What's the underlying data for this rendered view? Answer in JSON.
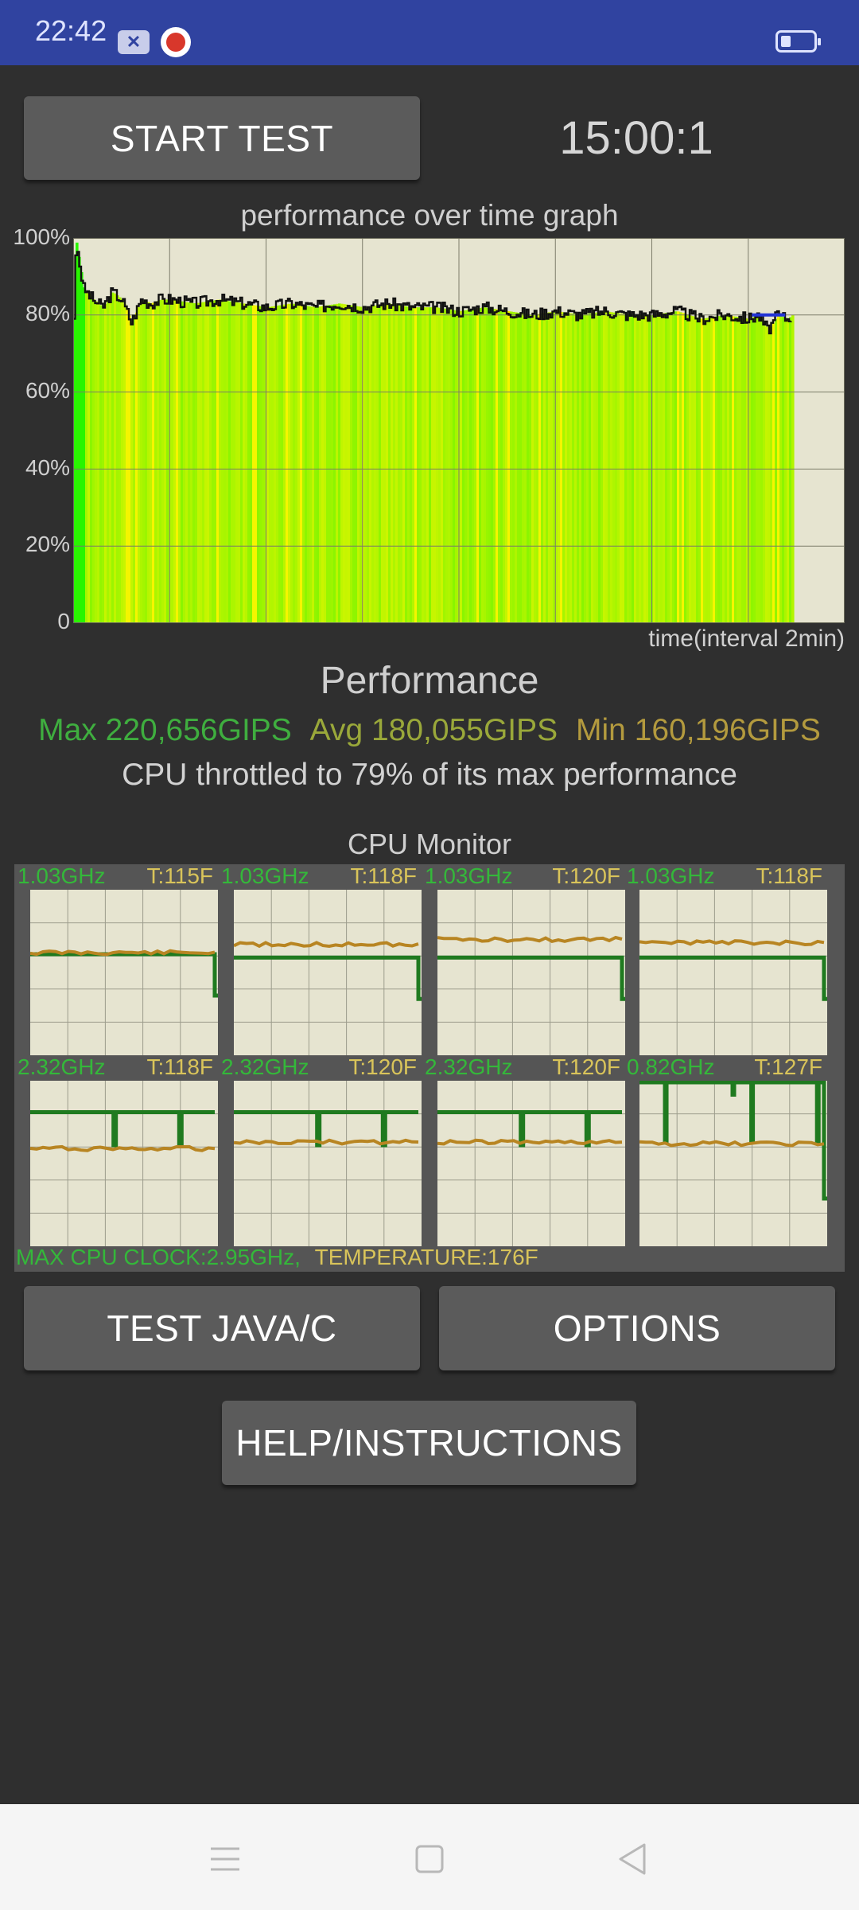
{
  "status_bar": {
    "time": "22:42",
    "icons": [
      "x-notification-icon",
      "app-notification-icon",
      "battery-icon"
    ]
  },
  "controls": {
    "start_test_label": "START TEST",
    "timer": "15:00:1"
  },
  "chart_data": {
    "type": "area",
    "title": "performance over time graph",
    "xlabel": "time(interval 2min)",
    "ylabel": "",
    "ylim": [
      0,
      100
    ],
    "y_tick_labels": [
      "100%",
      "80%",
      "60%",
      "40%",
      "20%",
      "0"
    ],
    "x_interval_minutes": 2,
    "x_range_minutes": [
      0,
      16
    ],
    "grid": true,
    "series": [
      {
        "x": [
          0,
          0.05,
          0.2,
          0.4,
          0.6,
          0.8,
          1.0,
          1.2,
          1.4,
          1.6,
          1.8,
          2,
          2.5,
          3,
          3.5,
          4,
          4.5,
          5,
          5.5,
          6,
          6.5,
          7,
          7.5,
          8,
          8.5,
          9,
          9.5,
          10,
          10.5,
          11,
          11.5,
          12,
          12.5,
          13,
          13.5,
          14,
          14.2,
          14.4,
          14.6,
          14.8,
          14.9
        ],
        "values": [
          79,
          99,
          87,
          84,
          82,
          86,
          84,
          78,
          84,
          83,
          84,
          84,
          83,
          84,
          83,
          82,
          83,
          82,
          83,
          82,
          83,
          82,
          82,
          81,
          82,
          81,
          80,
          81,
          80,
          81,
          80,
          80,
          81,
          79,
          80,
          79,
          80,
          76,
          80,
          79,
          80
        ]
      }
    ]
  },
  "performance": {
    "title": "Performance",
    "max": "Max 220,656GIPS",
    "avg": "Avg 180,055GIPS",
    "min": "Min 160,196GIPS",
    "throttle_text": "CPU throttled to 79% of its max performance",
    "colors": {
      "max": "#3fae3f",
      "avg": "#9aa83a",
      "min": "#b39a3e"
    }
  },
  "cpu_monitor": {
    "title": "CPU Monitor",
    "cores": [
      {
        "freq": "1.03GHz",
        "temp": "T:115F",
        "freq_level": 0.62,
        "temp_level": 0.62,
        "drop": "end"
      },
      {
        "freq": "1.03GHz",
        "temp": "T:118F",
        "freq_level": 0.6,
        "temp_level": 0.67,
        "drop": "end"
      },
      {
        "freq": "1.03GHz",
        "temp": "T:120F",
        "freq_level": 0.6,
        "temp_level": 0.7,
        "drop": "end"
      },
      {
        "freq": "1.03GHz",
        "temp": "T:118F",
        "freq_level": 0.6,
        "temp_level": 0.68,
        "drop": "end"
      },
      {
        "freq": "2.32GHz",
        "temp": "T:118F",
        "freq_level": 0.82,
        "temp_level": 0.59,
        "drop": "spikes"
      },
      {
        "freq": "2.32GHz",
        "temp": "T:120F",
        "freq_level": 0.82,
        "temp_level": 0.63,
        "drop": "spikes"
      },
      {
        "freq": "2.32GHz",
        "temp": "T:120F",
        "freq_level": 0.82,
        "temp_level": 0.63,
        "drop": "spikes"
      },
      {
        "freq": "0.82GHz",
        "temp": "T:127F",
        "freq_level": 1.0,
        "temp_level": 0.62,
        "drop": "bigspikes"
      }
    ],
    "max_clock": "MAX CPU CLOCK:2.95GHz,",
    "max_temp": "TEMPERATURE:176F"
  },
  "buttons": {
    "test_java_c": "TEST JAVA/C",
    "options": "OPTIONS",
    "help": "HELP/INSTRUCTIONS"
  },
  "nav_bar": {
    "icons": [
      "menu-icon",
      "home-icon",
      "back-icon"
    ]
  }
}
